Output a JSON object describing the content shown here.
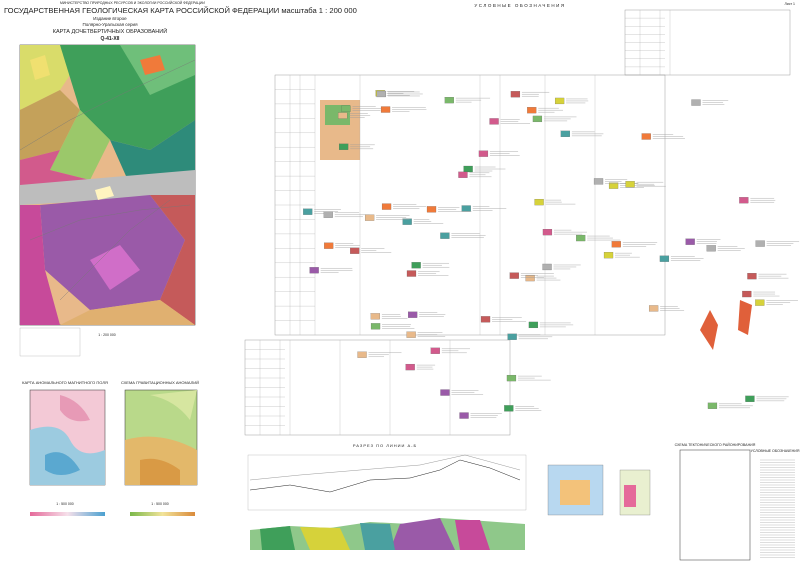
{
  "header": {
    "publisher": "МИНИСТЕРСТВО ПРИРОДНЫХ РЕСУРСОВ И ЭКОЛОГИИ РОССИЙСКОЙ ФЕДЕРАЦИИ",
    "title": "ГОСУДАРСТВЕННАЯ ГЕОЛОГИЧЕСКАЯ КАРТА РОССИЙСКОЙ ФЕДЕРАЦИИ масштаба 1 : 200 000",
    "edition": "Издание второе",
    "series": "Полярно-Уральская серия",
    "map_title": "КАРТА ДОЧЕТВЕРТИЧНЫХ ОБРАЗОВАНИЙ",
    "sheet": "Q-41-XII",
    "page": "Лист 1"
  },
  "map": {
    "scale": "1 : 200 000"
  },
  "insets": [
    {
      "title": "КАРТА АНОМАЛЬНОГО МАГНИТНОГО ПОЛЯ",
      "scale": "1 : 500 000"
    },
    {
      "title": "СХЕМА ГРАВИТАЦИОННЫХ АНОМАЛИЙ",
      "scale": "1 : 500 000"
    }
  ],
  "legend": {
    "title": "УСЛОВНЫЕ ОБОЗНАЧЕНИЯ"
  },
  "section": {
    "title": "РАЗРЕЗ ПО ЛИНИИ А-Б"
  },
  "tectonic": {
    "title": "СХЕМА ТЕКТОНИЧЕСКОГО РАЙОНИРОВАНИЯ"
  }
}
